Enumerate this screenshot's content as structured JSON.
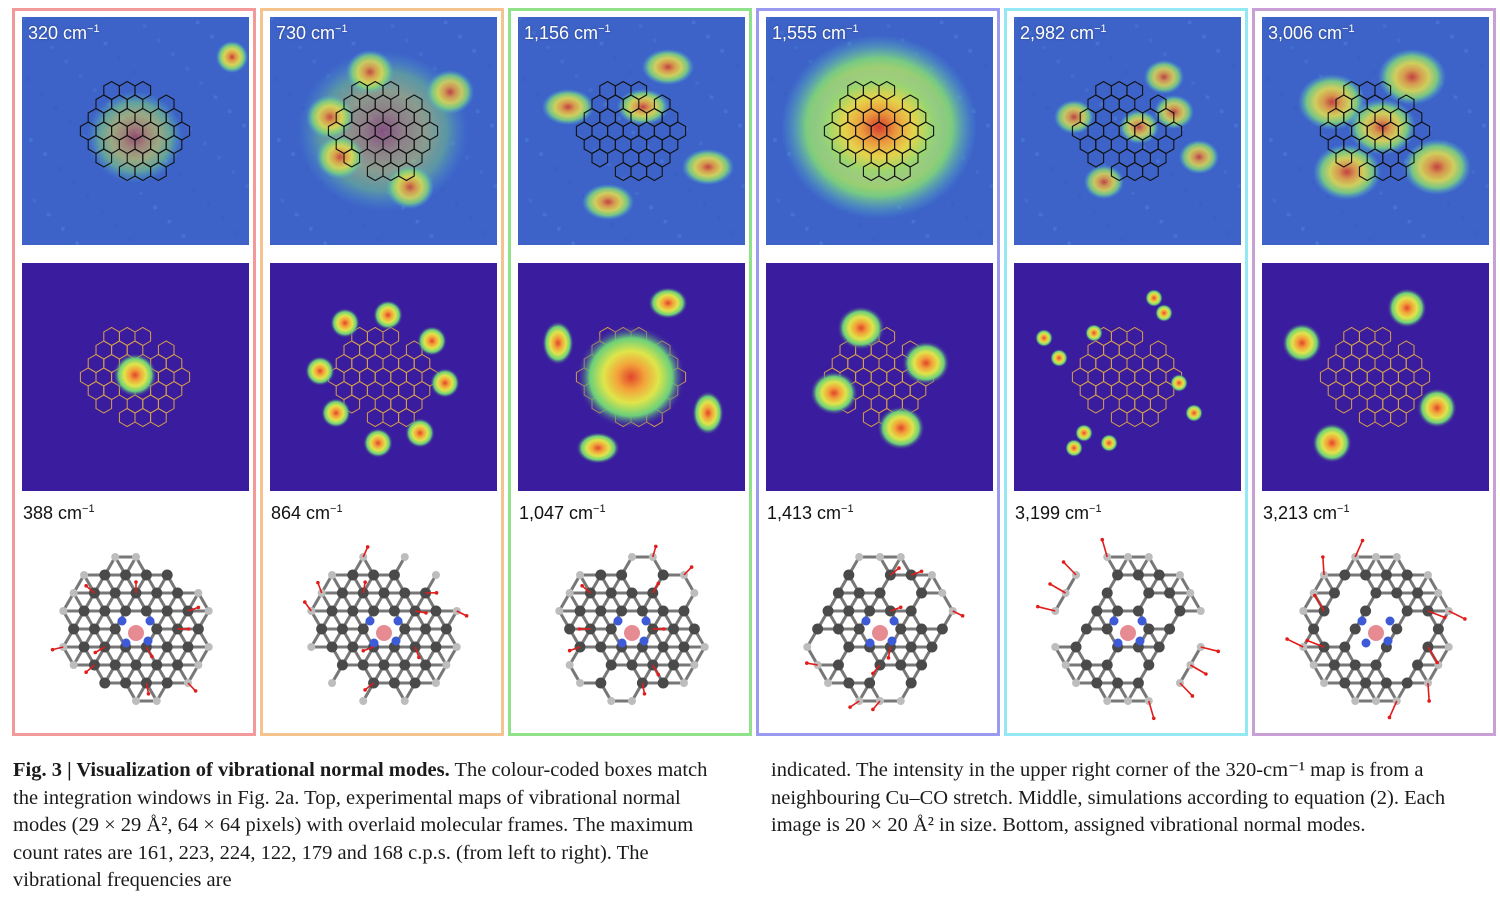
{
  "colors": {
    "col_borders": [
      "#f29a9a",
      "#f5c38e",
      "#8fe28a",
      "#9a9bf0",
      "#93e8f4",
      "#c9a0d6"
    ],
    "sim_background": "#3a1c9e",
    "exp_background": "#3d63c8",
    "frame_line_exp": "#111111",
    "frame_line_sim": "#d9a24a"
  },
  "columns": [
    {
      "exp_freq": "320 cm",
      "mode_freq": "388 cm",
      "exp_pattern": "center-corner",
      "sim_pattern": "center"
    },
    {
      "exp_freq": "730 cm",
      "mode_freq": "864 cm",
      "exp_pattern": "lobes",
      "sim_pattern": "ring-spots"
    },
    {
      "exp_freq": "1,156 cm",
      "mode_freq": "1,047 cm",
      "exp_pattern": "arcs",
      "sim_pattern": "ring-arcs"
    },
    {
      "exp_freq": "1,555 cm",
      "mode_freq": "1,413 cm",
      "exp_pattern": "blob",
      "sim_pattern": "cross-arcs"
    },
    {
      "exp_freq": "2,982 cm",
      "mode_freq": "3,199 cm",
      "exp_pattern": "small-spots",
      "sim_pattern": "small-spots"
    },
    {
      "exp_freq": "3,006 cm",
      "mode_freq": "3,213 cm",
      "exp_pattern": "four-lobes",
      "sim_pattern": "four-lobes"
    }
  ],
  "unit_superscript": "−1",
  "caption": {
    "left_bold": "Fig. 3 | Visualization of vibrational normal modes.",
    "left_text": " The colour-coded boxes match the integration windows in Fig. 2a. Top, experimental maps of vibrational normal modes (29 × 29 Å², 64 × 64 pixels) with overlaid molecular frames. The maximum count rates are 161, 223, 224, 122, 179 and 168 c.p.s. (from left to right). The vibrational frequencies are",
    "right_text": "indicated. The intensity in the upper right corner of the 320-cm⁻¹ map is from a neighbouring Cu–CO stretch. Middle, simulations according to equation (2). Each image is 20 × 20 Å² in size. Bottom, assigned vibrational normal modes."
  }
}
